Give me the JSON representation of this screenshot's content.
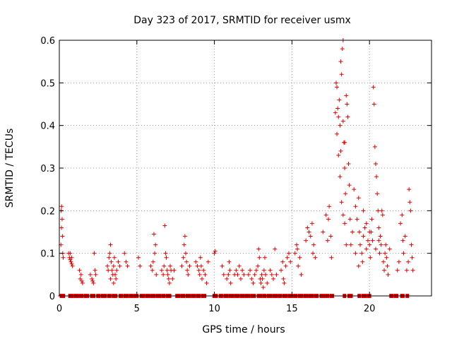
{
  "chart_data": {
    "type": "scatter",
    "title": "Day 323 of 2017, SRMTID for receiver usmx",
    "xlabel": "GPS time / hours",
    "ylabel": "SRMTID / TECUs",
    "xlim": [
      0,
      24
    ],
    "ylim": [
      0,
      0.6
    ],
    "grid": true,
    "x_ticks": [
      0,
      5,
      10,
      15,
      20
    ],
    "x_tick_labels": [
      "0",
      "5",
      "10",
      "15",
      "20"
    ],
    "y_ticks": [
      0,
      0.1,
      0.2,
      0.3,
      0.4,
      0.5,
      0.6
    ],
    "y_tick_labels": [
      "0",
      "0.1",
      "0.2",
      "0.3",
      "0.4",
      "0.5",
      "0.6"
    ],
    "series": [
      {
        "name": "SRMTID",
        "color": "#e00000",
        "marker": "plus",
        "points": [
          [
            0.1,
            0.12
          ],
          [
            0.12,
            0.2
          ],
          [
            0.15,
            0.21
          ],
          [
            0.18,
            0.18
          ],
          [
            0.2,
            0.14
          ],
          [
            0.22,
            0.1
          ],
          [
            0.25,
            0.09
          ],
          [
            0.14,
            0.16
          ],
          [
            0.6,
            0.1
          ],
          [
            0.65,
            0.09
          ],
          [
            0.7,
            0.085
          ],
          [
            0.75,
            0.08
          ],
          [
            0.8,
            0.075
          ],
          [
            0.85,
            0.07
          ],
          [
            0.7,
            0.1
          ],
          [
            0.8,
            0.09
          ],
          [
            1.3,
            0.06
          ],
          [
            1.35,
            0.04
          ],
          [
            1.4,
            0.05
          ],
          [
            1.45,
            0.035
          ],
          [
            1.5,
            0.03
          ],
          [
            2.0,
            0.05
          ],
          [
            2.1,
            0.04
          ],
          [
            2.15,
            0.035
          ],
          [
            2.2,
            0.03
          ],
          [
            2.25,
            0.1
          ],
          [
            2.3,
            0.06
          ],
          [
            2.35,
            0.05
          ],
          [
            3.1,
            0.07
          ],
          [
            3.15,
            0.06
          ],
          [
            3.2,
            0.09
          ],
          [
            3.25,
            0.1
          ],
          [
            3.3,
            0.12
          ],
          [
            3.35,
            0.08
          ],
          [
            3.4,
            0.06
          ],
          [
            3.45,
            0.05
          ],
          [
            3.5,
            0.07
          ],
          [
            3.55,
            0.09
          ],
          [
            3.6,
            0.05
          ],
          [
            3.65,
            0.04
          ],
          [
            3.7,
            0.06
          ],
          [
            3.8,
            0.08
          ],
          [
            3.9,
            0.07
          ],
          [
            3.3,
            0.04
          ],
          [
            3.5,
            0.03
          ],
          [
            4.2,
            0.1
          ],
          [
            4.3,
            0.08
          ],
          [
            4.4,
            0.07
          ],
          [
            5.1,
            0.09
          ],
          [
            5.2,
            0.07
          ],
          [
            5.9,
            0.07
          ],
          [
            6.0,
            0.06
          ],
          [
            6.05,
            0.08
          ],
          [
            6.1,
            0.145
          ],
          [
            6.15,
            0.1
          ],
          [
            6.2,
            0.12
          ],
          [
            6.25,
            0.05
          ],
          [
            6.6,
            0.06
          ],
          [
            6.7,
            0.05
          ],
          [
            6.75,
            0.07
          ],
          [
            6.8,
            0.165
          ],
          [
            6.85,
            0.1
          ],
          [
            6.9,
            0.09
          ],
          [
            6.95,
            0.06
          ],
          [
            7.0,
            0.05
          ],
          [
            7.05,
            0.04
          ],
          [
            7.1,
            0.03
          ],
          [
            7.15,
            0.07
          ],
          [
            7.2,
            0.06
          ],
          [
            7.3,
            0.04
          ],
          [
            7.4,
            0.06
          ],
          [
            7.9,
            0.07
          ],
          [
            8.0,
            0.09
          ],
          [
            8.05,
            0.12
          ],
          [
            8.1,
            0.14
          ],
          [
            8.15,
            0.1
          ],
          [
            8.2,
            0.08
          ],
          [
            8.25,
            0.06
          ],
          [
            8.3,
            0.05
          ],
          [
            8.4,
            0.07
          ],
          [
            8.8,
            0.08
          ],
          [
            8.9,
            0.07
          ],
          [
            9.0,
            0.06
          ],
          [
            9.05,
            0.05
          ],
          [
            9.1,
            0.09
          ],
          [
            9.15,
            0.07
          ],
          [
            9.2,
            0.04
          ],
          [
            9.3,
            0.06
          ],
          [
            9.4,
            0.05
          ],
          [
            9.5,
            0.03
          ],
          [
            9.6,
            0.08
          ],
          [
            10.0,
            0.1
          ],
          [
            10.05,
            0.105
          ],
          [
            10.5,
            0.07
          ],
          [
            10.6,
            0.05
          ],
          [
            10.8,
            0.04
          ],
          [
            10.9,
            0.05
          ],
          [
            10.95,
            0.08
          ],
          [
            11.0,
            0.06
          ],
          [
            11.05,
            0.03
          ],
          [
            11.3,
            0.05
          ],
          [
            11.4,
            0.06
          ],
          [
            11.5,
            0.05
          ],
          [
            11.6,
            0.07
          ],
          [
            11.7,
            0.04
          ],
          [
            11.8,
            0.06
          ],
          [
            11.9,
            0.05
          ],
          [
            12.2,
            0.05
          ],
          [
            12.3,
            0.06
          ],
          [
            12.4,
            0.04
          ],
          [
            12.5,
            0.03
          ],
          [
            12.6,
            0.05
          ],
          [
            12.7,
            0.06
          ],
          [
            12.8,
            0.07
          ],
          [
            12.85,
            0.11
          ],
          [
            12.9,
            0.09
          ],
          [
            12.95,
            0.04
          ],
          [
            13.0,
            0.03
          ],
          [
            13.05,
            0.05
          ],
          [
            13.1,
            0.04
          ],
          [
            13.15,
            0.02
          ],
          [
            13.2,
            0.06
          ],
          [
            13.25,
            0.09
          ],
          [
            13.3,
            0.05
          ],
          [
            13.4,
            0.03
          ],
          [
            13.6,
            0.06
          ],
          [
            13.7,
            0.05
          ],
          [
            13.8,
            0.04
          ],
          [
            13.9,
            0.11
          ],
          [
            14.0,
            0.05
          ],
          [
            14.3,
            0.06
          ],
          [
            14.4,
            0.08
          ],
          [
            14.45,
            0.04
          ],
          [
            14.5,
            0.03
          ],
          [
            14.6,
            0.07
          ],
          [
            14.7,
            0.09
          ],
          [
            14.8,
            0.1
          ],
          [
            14.9,
            0.08
          ],
          [
            15.2,
            0.1
          ],
          [
            15.3,
            0.12
          ],
          [
            15.35,
            0.11
          ],
          [
            15.4,
            0.07
          ],
          [
            15.5,
            0.09
          ],
          [
            15.6,
            0.05
          ],
          [
            15.9,
            0.13
          ],
          [
            16.0,
            0.16
          ],
          [
            16.1,
            0.15
          ],
          [
            16.2,
            0.14
          ],
          [
            16.3,
            0.17
          ],
          [
            16.35,
            0.1
          ],
          [
            16.4,
            0.12
          ],
          [
            16.5,
            0.09
          ],
          [
            17.0,
            0.15
          ],
          [
            17.2,
            0.19
          ],
          [
            17.3,
            0.13
          ],
          [
            17.35,
            0.18
          ],
          [
            17.4,
            0.21
          ],
          [
            17.5,
            0.14
          ],
          [
            17.55,
            0.09
          ],
          [
            17.8,
            0.43
          ],
          [
            17.85,
            0.5
          ],
          [
            17.9,
            0.49
          ],
          [
            17.95,
            0.44
          ],
          [
            18.0,
            0.42
          ],
          [
            18.05,
            0.46
          ],
          [
            18.1,
            0.4
          ],
          [
            18.15,
            0.34
          ],
          [
            18.2,
            0.52
          ],
          [
            18.25,
            0.58
          ],
          [
            18.3,
            0.6
          ],
          [
            18.35,
            0.36
          ],
          [
            18.4,
            0.3
          ],
          [
            18.45,
            0.24
          ],
          [
            18.5,
            0.47
          ],
          [
            18.55,
            0.45
          ],
          [
            18.6,
            0.42
          ],
          [
            18.65,
            0.31
          ],
          [
            18.7,
            0.26
          ],
          [
            18.75,
            0.18
          ],
          [
            18.8,
            0.12
          ],
          [
            18.9,
            0.15
          ],
          [
            18.0,
            0.33
          ],
          [
            18.1,
            0.28
          ],
          [
            18.2,
            0.22
          ],
          [
            18.3,
            0.19
          ],
          [
            18.4,
            0.17
          ],
          [
            18.5,
            0.12
          ],
          [
            17.9,
            0.38
          ],
          [
            18.15,
            0.55
          ],
          [
            18.3,
            0.41
          ],
          [
            18.4,
            0.36
          ],
          [
            19.0,
            0.25
          ],
          [
            19.1,
            0.21
          ],
          [
            19.2,
            0.18
          ],
          [
            19.3,
            0.23
          ],
          [
            19.35,
            0.15
          ],
          [
            19.4,
            0.12
          ],
          [
            19.5,
            0.1
          ],
          [
            19.55,
            0.08
          ],
          [
            19.6,
            0.14
          ],
          [
            19.7,
            0.16
          ],
          [
            19.8,
            0.11
          ],
          [
            19.9,
            0.13
          ],
          [
            20.0,
            0.12
          ],
          [
            20.05,
            0.09
          ],
          [
            20.1,
            0.15
          ],
          [
            20.15,
            0.18
          ],
          [
            20.2,
            0.13
          ],
          [
            20.25,
            0.49
          ],
          [
            20.3,
            0.45
          ],
          [
            20.35,
            0.35
          ],
          [
            20.4,
            0.31
          ],
          [
            20.45,
            0.28
          ],
          [
            20.5,
            0.24
          ],
          [
            20.55,
            0.2
          ],
          [
            20.6,
            0.16
          ],
          [
            20.65,
            0.1
          ],
          [
            20.7,
            0.14
          ],
          [
            20.75,
            0.12
          ],
          [
            20.8,
            0.2
          ],
          [
            20.85,
            0.19
          ],
          [
            20.9,
            0.08
          ],
          [
            20.95,
            0.06
          ],
          [
            21.0,
            0.1
          ],
          [
            21.05,
            0.12
          ],
          [
            21.1,
            0.09
          ],
          [
            21.15,
            0.07
          ],
          [
            21.2,
            0.05
          ],
          [
            21.3,
            0.11
          ],
          [
            19.1,
            0.1
          ],
          [
            19.3,
            0.07
          ],
          [
            19.6,
            0.2
          ],
          [
            19.8,
            0.17
          ],
          [
            20.0,
            0.15
          ],
          [
            20.4,
            0.11
          ],
          [
            20.6,
            0.13
          ],
          [
            21.8,
            0.06
          ],
          [
            21.9,
            0.08
          ],
          [
            22.0,
            0.17
          ],
          [
            22.1,
            0.19
          ],
          [
            22.15,
            0.13
          ],
          [
            22.2,
            0.1
          ],
          [
            22.3,
            0.14
          ],
          [
            22.4,
            0.06
          ],
          [
            22.5,
            0.08
          ],
          [
            22.55,
            0.25
          ],
          [
            22.6,
            0.22
          ],
          [
            22.65,
            0.2
          ],
          [
            22.7,
            0.12
          ],
          [
            22.75,
            0.09
          ],
          [
            22.8,
            0.06
          ]
        ],
        "zero_ranges": [
          [
            0.05,
            0.35
          ],
          [
            0.6,
            0.9
          ],
          [
            0.95,
            1.25
          ],
          [
            1.3,
            1.55
          ],
          [
            1.6,
            1.9
          ],
          [
            2.0,
            2.3
          ],
          [
            2.4,
            2.65
          ],
          [
            2.7,
            3.05
          ],
          [
            3.1,
            3.35
          ],
          [
            3.4,
            3.75
          ],
          [
            3.85,
            4.1
          ],
          [
            4.15,
            4.45
          ],
          [
            4.5,
            4.8
          ],
          [
            4.85,
            5.1
          ],
          [
            5.2,
            5.5
          ],
          [
            5.55,
            5.85
          ],
          [
            5.9,
            6.2
          ],
          [
            6.25,
            6.55
          ],
          [
            6.6,
            6.85
          ],
          [
            6.9,
            7.2
          ],
          [
            7.5,
            7.8
          ],
          [
            7.85,
            8.1
          ],
          [
            8.15,
            8.45
          ],
          [
            8.5,
            8.8
          ],
          [
            8.85,
            9.1
          ],
          [
            9.15,
            9.45
          ],
          [
            9.9,
            10.2
          ],
          [
            10.3,
            10.55
          ],
          [
            10.6,
            10.9
          ],
          [
            10.95,
            11.25
          ],
          [
            11.3,
            11.6
          ],
          [
            11.65,
            11.95
          ],
          [
            12.0,
            12.3
          ],
          [
            12.35,
            12.65
          ],
          [
            12.75,
            13.05
          ],
          [
            13.1,
            13.35
          ],
          [
            13.4,
            13.7
          ],
          [
            13.75,
            14.05
          ],
          [
            14.1,
            14.35
          ],
          [
            14.4,
            14.7
          ],
          [
            14.75,
            15.05
          ],
          [
            15.1,
            15.35
          ],
          [
            15.4,
            15.7
          ],
          [
            15.75,
            16.05
          ],
          [
            16.1,
            16.4
          ],
          [
            16.45,
            16.7
          ],
          [
            16.8,
            17.1
          ],
          [
            17.15,
            17.4
          ],
          [
            17.45,
            17.7
          ],
          [
            18.3,
            18.5
          ],
          [
            18.6,
            18.9
          ],
          [
            19.25,
            19.45
          ],
          [
            19.5,
            19.8
          ],
          [
            19.85,
            20.1
          ],
          [
            21.3,
            21.55
          ],
          [
            21.6,
            21.85
          ],
          [
            22.0,
            22.25
          ],
          [
            22.35,
            22.55
          ]
        ]
      }
    ]
  }
}
